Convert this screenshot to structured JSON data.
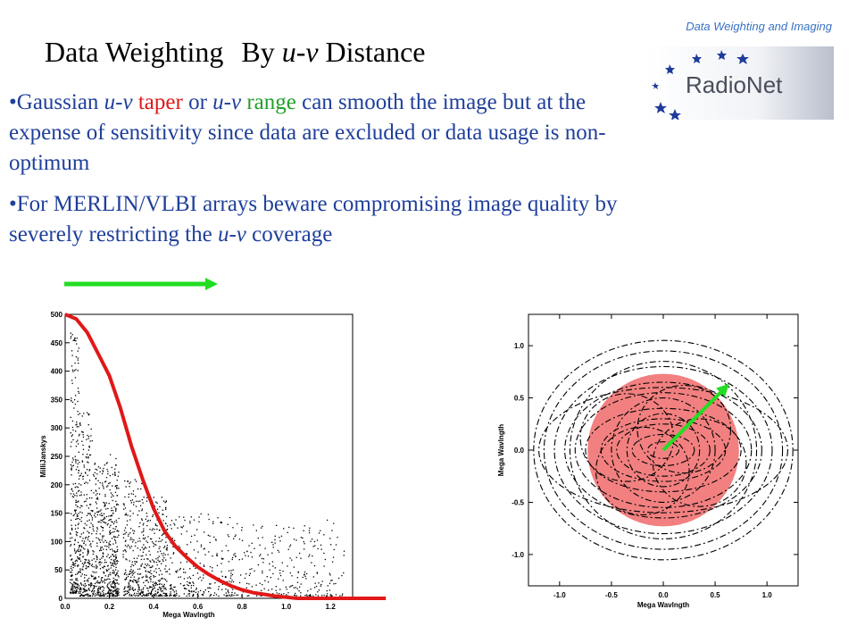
{
  "header": {
    "corner_title": "Data Weighting and Imaging",
    "logo_text": "RadioNet"
  },
  "title": {
    "part1": "Data Weighting",
    "part2_prefix": "By ",
    "part2_italic": "u-v",
    "part2_suffix": " Distance"
  },
  "bullets": [
    {
      "b": "•",
      "t1": "Gaussian ",
      "i1": "u-v",
      "t2": " ",
      "red": "taper",
      "t3": " or ",
      "i2": "u-v",
      "t4": " ",
      "green": "range",
      "t5": " can smooth the image but at the expense of sensitivity since data are excluded or data usage is non-optimum"
    },
    {
      "b": "•",
      "t1": "For MERLIN/VLBI arrays beware compromising image quality by severely restricting the ",
      "i1": "u-v",
      "t2": " coverage"
    }
  ],
  "colors": {
    "bullet_text": "#1f3f9b",
    "taper": "#e01818",
    "range": "#22a02a",
    "uv_disc": "#f06a6a"
  },
  "icons": [
    "arrow-right-icon",
    "arrow-diagonal-icon",
    "star-icon"
  ],
  "chart_data": [
    {
      "type": "scatter",
      "title": "",
      "xlabel": "Mega Wavlngth",
      "ylabel": "MilliJanskys",
      "xlim": [
        0.0,
        1.3
      ],
      "ylim": [
        0,
        500
      ],
      "xticks": [
        "0.0",
        "0.2",
        "0.4",
        "0.6",
        "0.8",
        "1.0",
        "1.2"
      ],
      "yticks": [
        "0",
        "50",
        "100",
        "150",
        "200",
        "250",
        "300",
        "350",
        "400",
        "450",
        "500"
      ],
      "series": [
        {
          "kind": "points",
          "note": "visibility amplitudes",
          "clusters": [
            {
              "x": [
                0.02,
                0.06
              ],
              "y": [
                10,
                470
              ]
            },
            {
              "x": [
                0.06,
                0.12
              ],
              "y": [
                5,
                330
              ]
            },
            {
              "x": [
                0.12,
                0.19
              ],
              "y": [
                5,
                240
              ]
            },
            {
              "x": [
                0.19,
                0.24
              ],
              "y": [
                5,
                260
              ]
            },
            {
              "x": [
                0.26,
                0.36
              ],
              "y": [
                5,
                210
              ]
            },
            {
              "x": [
                0.36,
                0.46
              ],
              "y": [
                5,
                180
              ]
            },
            {
              "x": [
                0.46,
                0.76
              ],
              "y": [
                5,
                150
              ]
            },
            {
              "x": [
                0.76,
                1.26
              ],
              "y": [
                5,
                140
              ]
            }
          ]
        },
        {
          "kind": "curve",
          "note": "Gaussian taper",
          "x": [
            0.0,
            0.05,
            0.1,
            0.15,
            0.2,
            0.25,
            0.3,
            0.35,
            0.4,
            0.45,
            0.5,
            0.55,
            0.6,
            0.65,
            0.7,
            0.75,
            0.8,
            0.85,
            0.9,
            0.95,
            1.0,
            1.05,
            1.1,
            1.15,
            1.2,
            1.25,
            1.3,
            1.45
          ],
          "y": [
            500,
            492,
            468,
            430,
            392,
            335,
            268,
            210,
            158,
            118,
            91,
            72,
            55,
            42,
            31,
            22,
            15,
            10,
            7,
            4,
            2,
            0,
            0,
            0,
            0,
            0,
            0,
            0
          ]
        }
      ]
    },
    {
      "type": "scatter",
      "title": "",
      "xlabel": "Mega Wavlngth",
      "ylabel": "Mega Wavlngth",
      "xlim": [
        -1.3,
        1.3
      ],
      "ylim": [
        -1.3,
        1.3
      ],
      "xticks": [
        "-1.0",
        "-0.5",
        "0.0",
        "0.5",
        "1.0"
      ],
      "yticks": [
        "1.0",
        "0.5",
        "0.0",
        "-0.5",
        "-1.0"
      ],
      "disc_radius": 0.73,
      "arrow_to": [
        0.6,
        0.6
      ]
    }
  ]
}
